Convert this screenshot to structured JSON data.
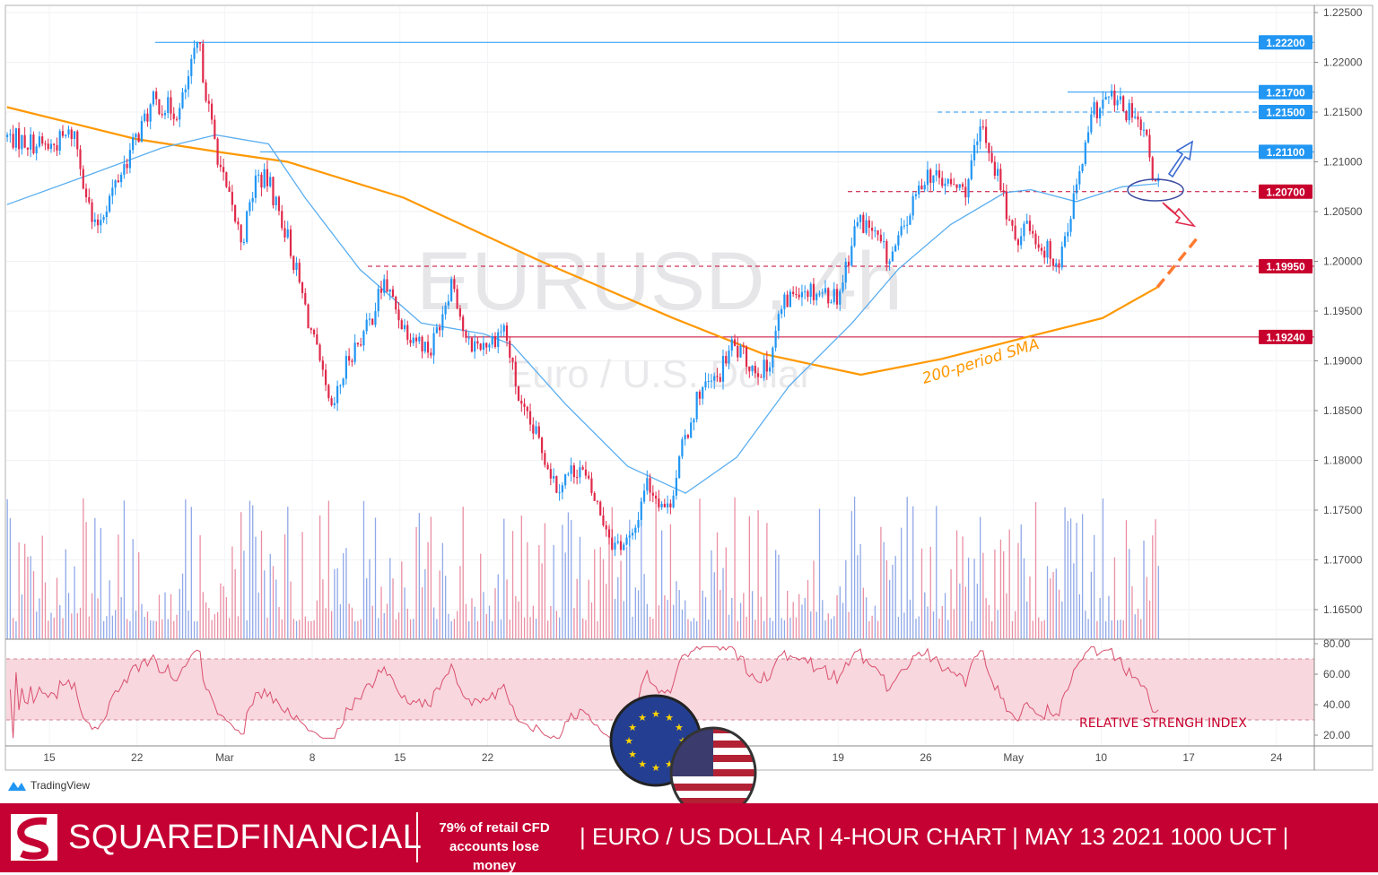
{
  "chart_data": {
    "type": "candlestick",
    "symbol_watermark": "EURUSD, 4h",
    "description_watermark": "Euro / U.S. Dollar",
    "timeframe": "4h",
    "ylim": [
      1.165,
      1.225
    ],
    "y_ticks": [
      "1.22500",
      "1.22000",
      "1.21500",
      "1.21000",
      "1.20500",
      "1.20000",
      "1.19500",
      "1.19000",
      "1.18500",
      "1.18000",
      "1.17500",
      "1.17000",
      "1.16500"
    ],
    "x_ticks": [
      "15",
      "22",
      "Mar",
      "8",
      "15",
      "22",
      "19",
      "26",
      "May",
      "10",
      "17",
      "24"
    ],
    "x_tick_dates": [
      "02-15",
      "02-22",
      "03-01",
      "03-08",
      "03-15",
      "03-22",
      "04-19",
      "04-26",
      "05-03",
      "05-10",
      "05-17",
      "05-24"
    ],
    "price_path": [
      [
        "02-10 14:00",
        1.2125
      ],
      [
        "02-15 00:00",
        1.2115
      ],
      [
        "02-16 10:00",
        1.213
      ],
      [
        "02-17 13:00",
        1.203
      ],
      [
        "02-22 00:00",
        1.2125
      ],
      [
        "02-22 22:00",
        1.216
      ],
      [
        "02-24 10:00",
        1.215
      ],
      [
        "02-25 12:00",
        1.222
      ],
      [
        "02-26 05:00",
        1.214
      ],
      [
        "03-01 00:00",
        1.2075
      ],
      [
        "03-02 00:00",
        1.202
      ],
      [
        "03-02 19:00",
        1.2085
      ],
      [
        "03-03 12:00",
        1.208
      ],
      [
        "03-04 14:00",
        1.2025
      ],
      [
        "03-08 00:00",
        1.1925
      ],
      [
        "03-09 02:00",
        1.1845
      ],
      [
        "03-10 02:00",
        1.1905
      ],
      [
        "03-11 05:00",
        1.1935
      ],
      [
        "03-12 02:00",
        1.198
      ],
      [
        "03-15 05:00",
        1.1935
      ],
      [
        "03-16 18:00",
        1.191
      ],
      [
        "03-18 00:00",
        1.1985
      ],
      [
        "03-18 19:00",
        1.1915
      ],
      [
        "03-22 05:00",
        1.192
      ],
      [
        "03-22 22:00",
        1.1935
      ],
      [
        "03-23 22:00",
        1.185
      ],
      [
        "03-24 22:00",
        1.182
      ],
      [
        "03-25 22:00",
        1.1775
      ],
      [
        "03-29 05:00",
        1.1795
      ],
      [
        "03-30 12:00",
        1.1745
      ],
      [
        "03-31 05:00",
        1.1715
      ],
      [
        "04-01 07:00",
        1.172
      ],
      [
        "04-02 00:00",
        1.178
      ],
      [
        "04-05 07:00",
        1.175
      ],
      [
        "04-06 02:00",
        1.181
      ],
      [
        "04-07 02:00",
        1.187
      ],
      [
        "04-08 02:00",
        1.188
      ],
      [
        "04-08 22:00",
        1.1915
      ],
      [
        "04-12 02:00",
        1.1895
      ],
      [
        "04-12 22:00",
        1.189
      ],
      [
        "04-13 17:00",
        1.195
      ],
      [
        "04-14 17:00",
        1.1975
      ],
      [
        "04-15 19:00",
        1.197
      ],
      [
        "04-19 00:00",
        1.1965
      ],
      [
        "04-20 02:00",
        1.204
      ],
      [
        "04-20 19:00",
        1.2035
      ],
      [
        "04-21 22:00",
        1.2
      ],
      [
        "04-22 14:00",
        1.2025
      ],
      [
        "04-26 00:00",
        1.209
      ],
      [
        "04-26 22:00",
        1.208
      ],
      [
        "04-28 05:00",
        1.207
      ],
      [
        "04-29 05:00",
        1.2135
      ],
      [
        "04-30 05:00",
        1.208
      ],
      [
        "05-03 00:00",
        1.202
      ],
      [
        "05-03 19:00",
        1.204
      ],
      [
        "05-04 14:00",
        1.2015
      ],
      [
        "05-05 14:00",
        1.2
      ],
      [
        "05-06 10:00",
        1.206
      ],
      [
        "05-07 14:00",
        1.215
      ],
      [
        "05-10 12:00",
        1.2165
      ],
      [
        "05-11 19:00",
        1.2145
      ],
      [
        "05-12 14:00",
        1.212
      ],
      [
        "05-13 02:00",
        1.2075
      ],
      [
        "05-13 10:00",
        1.208
      ]
    ],
    "sma_200": [
      [
        "02-10 14:00",
        1.2155
      ],
      [
        "02-19 22:00",
        1.2123
      ],
      [
        "03-01 00:00",
        1.2109
      ],
      [
        "03-04 14:00",
        1.21
      ],
      [
        "03-15 05:00",
        1.2064
      ],
      [
        "03-24 22:00",
        1.2001
      ],
      [
        "04-05 14:00",
        1.1943
      ],
      [
        "04-12 17:00",
        1.1907
      ],
      [
        "04-20 07:00",
        1.1886
      ],
      [
        "04-26 22:00",
        1.1902
      ],
      [
        "05-04 00:00",
        1.1925
      ],
      [
        "05-10 02:00",
        1.1943
      ],
      [
        "05-13 05:00",
        1.1974
      ]
    ],
    "sma_200_projection": [
      [
        "05-13 05:00",
        1.1974
      ],
      [
        "05-17 12:00",
        1.2024
      ]
    ],
    "sma_short": [
      [
        "02-10 14:00",
        1.2057
      ],
      [
        "02-17 07:00",
        1.2087
      ],
      [
        "02-23 10:00",
        1.2114
      ],
      [
        "02-26 12:00",
        1.2127
      ],
      [
        "03-03 12:00",
        1.2118
      ],
      [
        "03-05 14:00",
        1.2064
      ],
      [
        "03-10 17:00",
        1.1992
      ],
      [
        "03-16 05:00",
        1.1938
      ],
      [
        "03-19 19:00",
        1.1927
      ],
      [
        "03-23 10:00",
        1.1916
      ],
      [
        "03-26 10:00",
        1.1857
      ],
      [
        "04-01 00:00",
        1.1794
      ],
      [
        "04-06 07:00",
        1.1767
      ],
      [
        "04-09 05:00",
        1.1803
      ],
      [
        "04-14 05:00",
        1.1875
      ],
      [
        "04-19 19:00",
        1.1938
      ],
      [
        "04-22 10:00",
        1.1992
      ],
      [
        "04-27 10:00",
        1.2037
      ],
      [
        "04-30 12:00",
        1.2069
      ],
      [
        "05-04 00:00",
        1.2072
      ],
      [
        "05-06 14:00",
        1.206
      ],
      [
        "05-11 05:00",
        1.2075
      ],
      [
        "05-13 05:00",
        1.2078
      ]
    ],
    "levels": [
      {
        "price": 1.222,
        "label": "1.22200",
        "color": "#2196f3",
        "style": "solid"
      },
      {
        "price": 1.217,
        "label": "1.21700",
        "color": "#2196f3",
        "style": "solid"
      },
      {
        "price": 1.215,
        "label": "1.21500",
        "color": "#2196f3",
        "style": "dashed"
      },
      {
        "price": 1.211,
        "label": "1.21100",
        "color": "#2196f3",
        "style": "solid"
      },
      {
        "price": 1.207,
        "label": "1.20700",
        "color": "#c8002d",
        "style": "dashed"
      },
      {
        "price": 1.1995,
        "label": "1.19950",
        "color": "#c8002d",
        "style": "dashed"
      },
      {
        "price": 1.1924,
        "label": "1.19240",
        "color": "#c8002d",
        "style": "solid"
      }
    ],
    "rsi": {
      "ylim": [
        15,
        85
      ],
      "ticks": [
        "80.00",
        "60.00",
        "40.00",
        "20.00"
      ],
      "band": [
        30,
        70
      ],
      "label": "RELATIVE STRENGH INDEX"
    },
    "annotation_sma": "200-period SMA",
    "colors": {
      "up": "#2196f3",
      "down": "#e0294a",
      "sma_200": "#ff9800",
      "sma_short": "#5aaef0",
      "band": "#f8d7de"
    }
  },
  "footer": {
    "tradingview": "TradingView",
    "brand_bold": "SQUARED",
    "brand_light": "FINANCIAL",
    "risk_line1": "79% of retail CFD",
    "risk_line2": "accounts lose money",
    "headline": "| EURO / US DOLLAR | 4-HOUR CHART | MAY 13  2021  1000 UCT |"
  }
}
